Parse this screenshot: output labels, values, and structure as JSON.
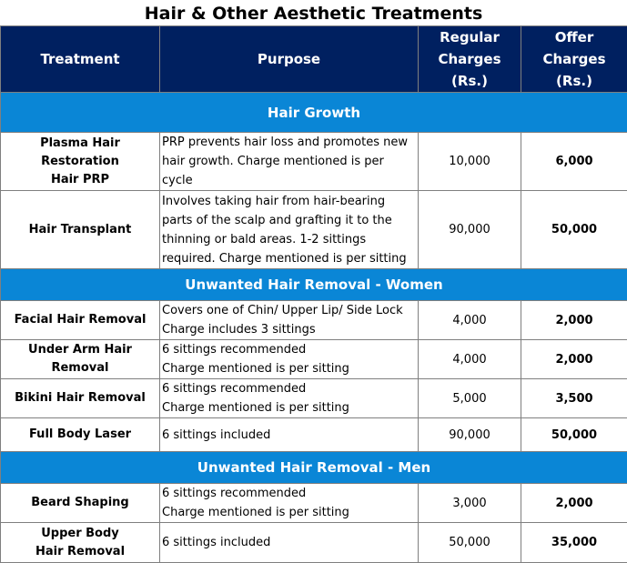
{
  "title": "Hair & Other Aesthetic Treatments",
  "headers": {
    "treatment": "Treatment",
    "purpose": "Purpose",
    "regular_1": "Regular",
    "regular_2": "Charges (Rs.)",
    "offer_1": "Offer Charges",
    "offer_2": "(Rs.)"
  },
  "sections": [
    {
      "title": "Hair Growth",
      "rows": [
        {
          "treatment": [
            "Plasma Hair Restoration",
            "Hair PRP"
          ],
          "purpose": [
            "PRP prevents hair loss and promotes new",
            "hair growth. Charge mentioned is per cycle"
          ],
          "regular": "10,000",
          "offer": "6,000"
        },
        {
          "treatment": [
            "Hair Transplant"
          ],
          "purpose": [
            "Involves taking hair from hair-bearing",
            "parts of the scalp and grafting it to the",
            "thinning or bald areas. 1-2 sittings",
            "required. Charge mentioned is per sitting"
          ],
          "regular": "90,000",
          "offer": "50,000"
        }
      ]
    },
    {
      "title": "Unwanted Hair Removal - Women",
      "rows": [
        {
          "treatment": [
            "Facial Hair Removal"
          ],
          "purpose": [
            "Covers one of Chin/ Upper Lip/ Side Lock",
            "Charge includes 3 sittings"
          ],
          "regular": "4,000",
          "offer": "2,000"
        },
        {
          "treatment": [
            "Under Arm Hair Removal"
          ],
          "purpose": [
            "6 sittings recommended",
            "Charge mentioned is per sitting"
          ],
          "regular": "4,000",
          "offer": "2,000"
        },
        {
          "treatment": [
            "Bikini Hair Removal"
          ],
          "purpose": [
            "6 sittings recommended",
            "Charge mentioned is per sitting"
          ],
          "regular": "5,000",
          "offer": "3,500"
        },
        {
          "treatment": [
            "Full Body Laser"
          ],
          "purpose": [
            "6 sittings included"
          ],
          "regular": "90,000",
          "offer": "50,000"
        }
      ]
    },
    {
      "title": "Unwanted Hair Removal - Men",
      "rows": [
        {
          "treatment": [
            "Beard Shaping"
          ],
          "purpose": [
            "6 sittings recommended",
            "Charge mentioned is per sitting"
          ],
          "regular": "3,000",
          "offer": "2,000"
        },
        {
          "treatment": [
            "Upper Body",
            "Hair Removal"
          ],
          "purpose": [
            "6 sittings included"
          ],
          "regular": "50,000",
          "offer": "35,000"
        }
      ]
    }
  ]
}
